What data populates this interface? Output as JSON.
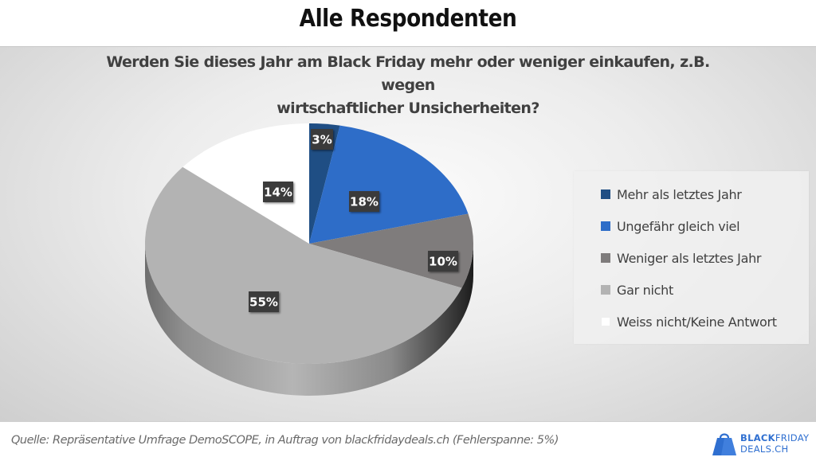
{
  "header": {
    "title": "Alle Respondenten"
  },
  "chart_data": {
    "type": "pie",
    "style": "3d",
    "title": "Werden Sie dieses Jahr am Black Friday mehr oder weniger einkaufen, z.B. wegen wirtschaftlicher Unsicherheiten?",
    "title_lines": [
      "Werden Sie dieses Jahr am Black Friday mehr oder weniger einkaufen, z.B. wegen",
      "wirtschaftlicher Unsicherheiten?"
    ],
    "categories": [
      "Mehr als letztes Jahr",
      "Ungefähr gleich viel",
      "Weniger als letztes Jahr",
      "Gar nicht",
      "Weiss nicht/Keine Antwort"
    ],
    "values": [
      3,
      18,
      10,
      55,
      14
    ],
    "unit": "%",
    "data_labels": [
      "3%",
      "18%",
      "10%",
      "55%",
      "14%"
    ],
    "colors": [
      "#1f4e84",
      "#2e6dc8",
      "#7f7c7c",
      "#b3b3b3",
      "#ffffff"
    ],
    "start_angle": "12 o'clock",
    "direction": "clockwise",
    "legend_position": "right"
  },
  "footer": {
    "source": "Quelle: Repräsentative Umfrage DemoSCOPE, in Auftrag von blackfridaydeals.ch (Fehlerspanne: 5%)",
    "logo_line1_bold": "BLACK",
    "logo_line1_rest": "FRIDAY",
    "logo_line2": "DEALS.CH",
    "logo_color": "#2f6fd0"
  }
}
